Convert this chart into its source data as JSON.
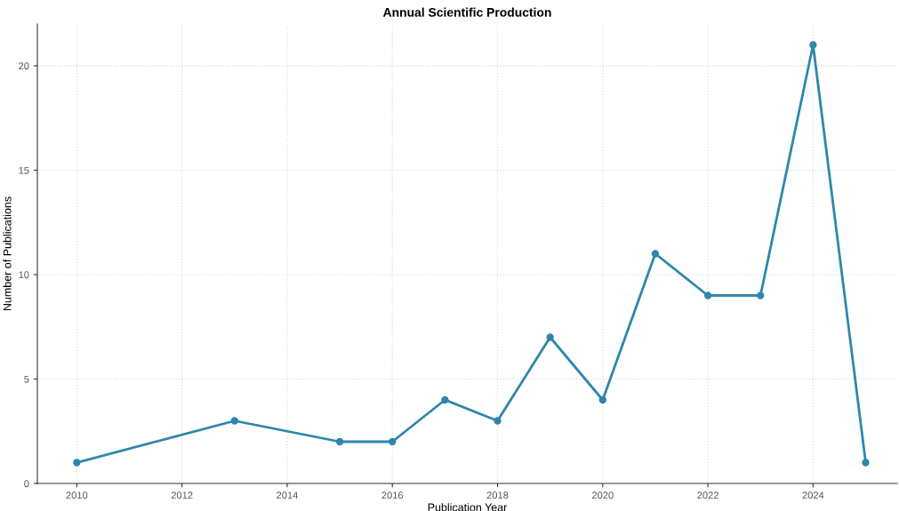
{
  "chart_data": {
    "type": "line",
    "title": "Annual Scientific Production",
    "xlabel": "Publication Year",
    "ylabel": "Number of Publications",
    "x": [
      2010,
      2013,
      2015,
      2016,
      2017,
      2018,
      2019,
      2020,
      2021,
      2022,
      2023,
      2024,
      2025
    ],
    "series": [
      {
        "color": "#2e86ab",
        "values": [
          1,
          3,
          2,
          2,
          4,
          3,
          7,
          4,
          11,
          9,
          9,
          21,
          1
        ]
      }
    ],
    "xlim": [
      2009.25,
      2025.6
    ],
    "xticks": [
      2010,
      2012,
      2014,
      2016,
      2018,
      2020,
      2022,
      2024
    ],
    "ylim": [
      0,
      22
    ],
    "yticks": [
      0,
      5,
      10,
      15,
      20
    ],
    "grid": true,
    "marker": "circle",
    "line_style": "solid"
  }
}
